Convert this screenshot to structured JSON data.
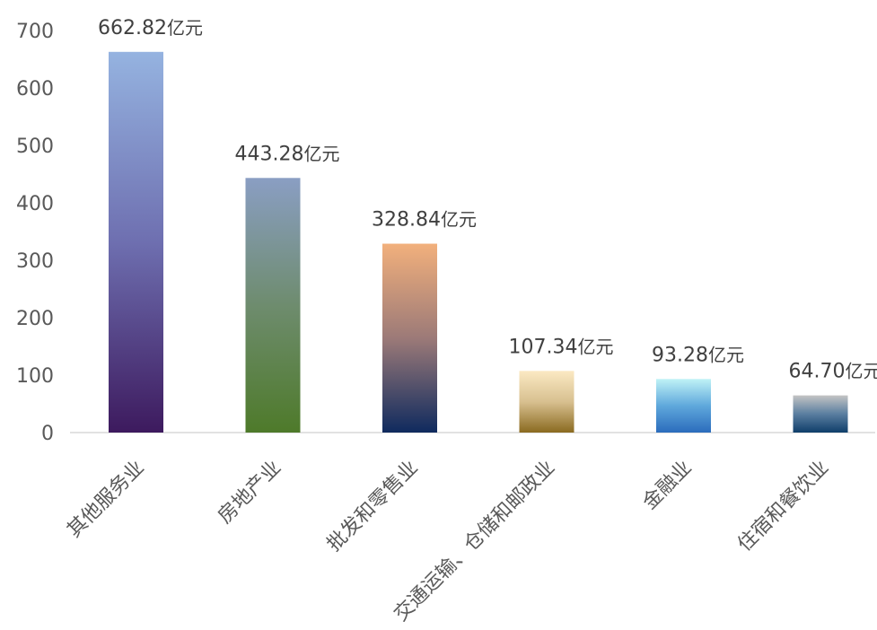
{
  "chart_data": {
    "type": "bar",
    "title": "",
    "xlabel": "",
    "ylabel": "",
    "ylim": [
      0,
      700
    ],
    "yticks": [
      0,
      100,
      200,
      300,
      400,
      500,
      600,
      700
    ],
    "grid": false,
    "legend": "none",
    "categories": [
      "其他服务业",
      "房地产业",
      "批发和零售业",
      "交通运输、仓储和邮政业",
      "金融业",
      "住宿和餐饮业"
    ],
    "values": [
      662.82,
      443.28,
      328.84,
      107.34,
      93.28,
      64.7
    ],
    "data_labels": [
      "662.82",
      "443.28",
      "328.84",
      "107.34",
      "93.28",
      "64.70"
    ],
    "unit": "亿元",
    "bar_gradients": [
      [
        "#95b3e0",
        "#6e6fb0",
        "#3d1a5e"
      ],
      [
        "#8a9ec3",
        "#6e8c6e",
        "#4e7a2a"
      ],
      [
        "#f2b07c",
        "#9c7a78",
        "#0f2a5e"
      ],
      [
        "#fbe9c3",
        "#d8c090",
        "#8a6a20"
      ],
      [
        "#bff2f6",
        "#5fa8dc",
        "#2b6cbc"
      ],
      [
        "#c4c4c4",
        "#5a7ea0",
        "#0f3e6a"
      ]
    ]
  }
}
